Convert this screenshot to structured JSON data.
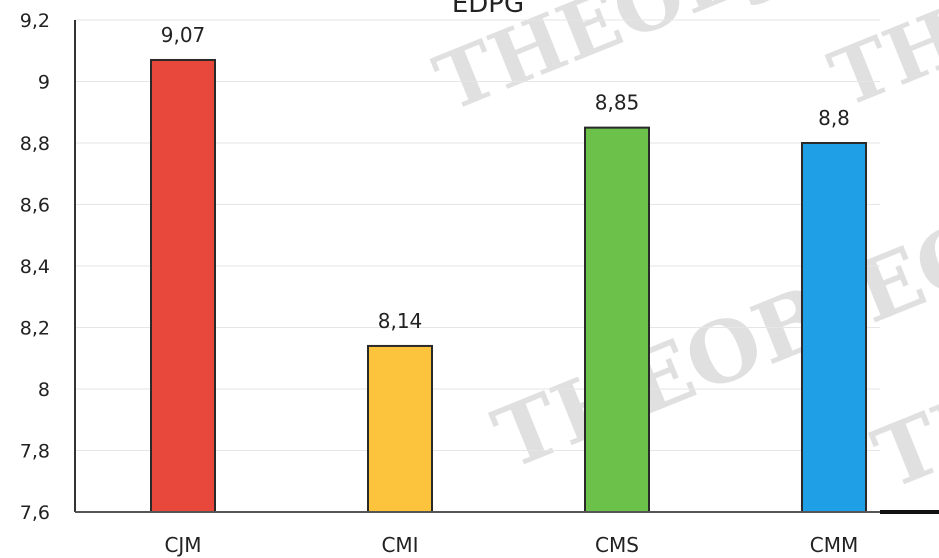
{
  "chart_data": {
    "type": "bar",
    "title": "EDPG",
    "categories": [
      "CJM",
      "CMI",
      "CMS",
      "CMM"
    ],
    "values": [
      9.07,
      8.14,
      8.85,
      8.8
    ],
    "value_labels": [
      "9,07",
      "8,14",
      "8,85",
      "8,8"
    ],
    "ylim": [
      7.6,
      9.2
    ],
    "y_ticks": [
      7.6,
      7.8,
      8.0,
      8.2,
      8.4,
      8.6,
      8.8,
      9.0,
      9.2
    ],
    "y_tick_labels": [
      "7,6",
      "7,8",
      "8",
      "8,2",
      "8,4",
      "8,6",
      "8,8",
      "9",
      "9,2"
    ],
    "colors": [
      "#e8473c",
      "#fcc33c",
      "#6cc14a",
      "#1e9fe6"
    ],
    "grid": true,
    "legend": "none"
  },
  "watermarks": [
    "THEOBJECTIVE",
    "THEOBJECTIVE",
    "THEOBJECTIVE",
    "THEOBJECTIVE"
  ]
}
